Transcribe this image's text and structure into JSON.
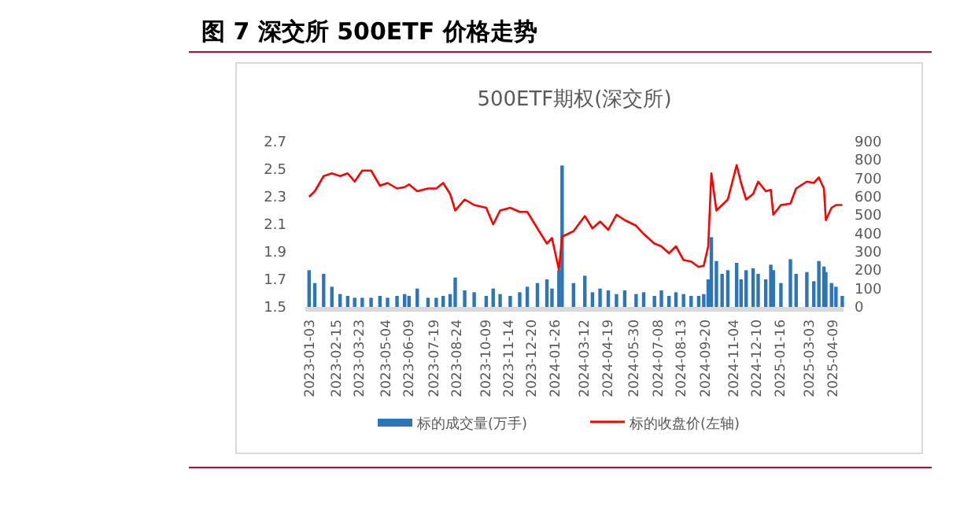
{
  "chart_data": {
    "type": "line",
    "title": "图 7 深交所 500ETF 价格走势",
    "subtitle": "500ETF期权(深交所)",
    "legend": "bottom",
    "xlim": [
      "2022-12-28",
      "2025-04-27"
    ],
    "xticks": [
      "2023-01-03",
      "2023-02-15",
      "2023-03-23",
      "2023-05-04",
      "2023-06-09",
      "2023-07-19",
      "2023-08-24",
      "2023-10-09",
      "2023-11-14",
      "2023-12-20",
      "2024-01-26",
      "2024-03-12",
      "2024-04-19",
      "2024-05-30",
      "2024-07-08",
      "2024-08-13",
      "2024-09-20",
      "2024-11-04",
      "2024-12-10",
      "2025-01-16",
      "2025-03-03",
      "2025-04-09"
    ],
    "ylim": [
      1.5,
      2.7
    ],
    "yticks": [
      1.5,
      1.7,
      1.9,
      2.1,
      2.3,
      2.5,
      2.7
    ],
    "y2lim": [
      0,
      900
    ],
    "y2ticks": [
      0,
      100,
      200,
      300,
      400,
      500,
      600,
      700,
      800,
      900
    ],
    "x": [
      "2023-01-03",
      "2023-01-12",
      "2023-01-26",
      "2023-02-08",
      "2023-02-21",
      "2023-03-05",
      "2023-03-16",
      "2023-03-28",
      "2023-04-11",
      "2023-04-25",
      "2023-05-07",
      "2023-05-22",
      "2023-06-03",
      "2023-06-10",
      "2023-06-23",
      "2023-07-10",
      "2023-07-23",
      "2023-08-03",
      "2023-08-14",
      "2023-08-22",
      "2023-09-06",
      "2023-09-21",
      "2023-10-10",
      "2023-10-21",
      "2023-11-01",
      "2023-11-17",
      "2023-12-02",
      "2023-12-14",
      "2023-12-30",
      "2024-01-14",
      "2024-01-22",
      "2024-02-02",
      "2024-02-07",
      "2024-02-25",
      "2024-03-14",
      "2024-03-26",
      "2024-04-07",
      "2024-04-20",
      "2024-05-03",
      "2024-05-16",
      "2024-06-03",
      "2024-06-15",
      "2024-07-02",
      "2024-07-13",
      "2024-07-25",
      "2024-08-05",
      "2024-08-17",
      "2024-08-29",
      "2024-09-10",
      "2024-09-18",
      "2024-09-25",
      "2024-09-30",
      "2024-10-08",
      "2024-10-17",
      "2024-10-26",
      "2024-11-09",
      "2024-11-16",
      "2024-11-24",
      "2024-12-05",
      "2024-12-13",
      "2024-12-25",
      "2025-01-02",
      "2025-01-06",
      "2025-01-18",
      "2025-02-02",
      "2025-02-11",
      "2025-02-28",
      "2025-03-11",
      "2025-03-19",
      "2025-03-27",
      "2025-03-30",
      "2025-04-08",
      "2025-04-15",
      "2025-04-25"
    ],
    "series": [
      {
        "name": "标的成交量(万手)",
        "type": "bar",
        "axis": "y2",
        "color": "#2e75b6",
        "values": [
          200,
          130,
          180,
          110,
          70,
          60,
          50,
          50,
          50,
          60,
          50,
          60,
          70,
          60,
          100,
          50,
          50,
          60,
          70,
          160,
          90,
          80,
          60,
          100,
          70,
          60,
          80,
          110,
          130,
          150,
          100,
          200,
          770,
          130,
          170,
          80,
          100,
          90,
          70,
          90,
          70,
          80,
          60,
          90,
          60,
          80,
          70,
          60,
          60,
          70,
          150,
          380,
          250,
          180,
          200,
          240,
          150,
          200,
          210,
          180,
          150,
          230,
          200,
          130,
          260,
          180,
          190,
          140,
          250,
          220,
          190,
          130,
          110,
          60
        ]
      },
      {
        "name": "标的收盘价(左轴)",
        "color": "#ff0000",
        "values": [
          2.3,
          2.34,
          2.45,
          2.47,
          2.45,
          2.47,
          2.41,
          2.49,
          2.49,
          2.38,
          2.4,
          2.36,
          2.37,
          2.39,
          2.34,
          2.36,
          2.36,
          2.4,
          2.32,
          2.2,
          2.28,
          2.24,
          2.22,
          2.1,
          2.2,
          2.22,
          2.19,
          2.19,
          2.07,
          1.96,
          2.0,
          1.77,
          2.01,
          2.05,
          2.16,
          2.07,
          2.12,
          2.06,
          2.17,
          2.13,
          2.09,
          2.03,
          1.96,
          1.94,
          1.89,
          1.94,
          1.84,
          1.83,
          1.79,
          1.8,
          1.94,
          2.47,
          2.2,
          2.24,
          2.28,
          2.53,
          2.4,
          2.28,
          2.32,
          2.41,
          2.34,
          2.35,
          2.17,
          2.24,
          2.25,
          2.36,
          2.41,
          2.4,
          2.44,
          2.36,
          2.13,
          2.22,
          2.24,
          2.24
        ]
      }
    ]
  }
}
